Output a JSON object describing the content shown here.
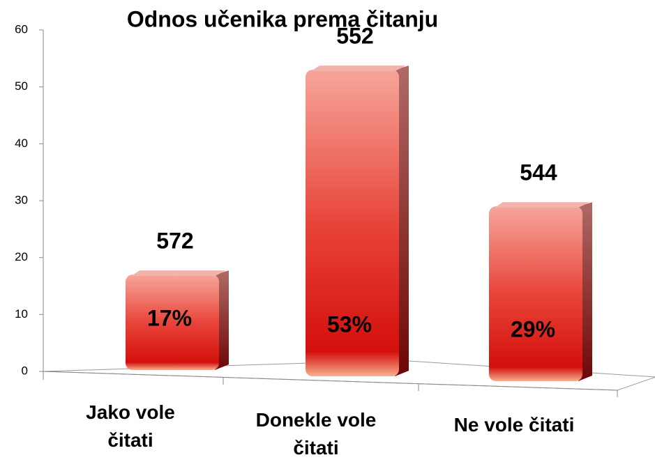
{
  "chart_data": {
    "type": "bar",
    "title": "Odnos učenika prema čitanju",
    "categories": [
      "Jako vole čitati",
      "Donekle vole čitati",
      "Ne vole čitati"
    ],
    "values": [
      17,
      53,
      29
    ],
    "value_labels": [
      "17%",
      "53%",
      "29%"
    ],
    "counts": [
      572,
      552,
      544
    ],
    "color": "#e01e1c",
    "ylim": [
      0,
      60
    ],
    "yticks": [
      0,
      10,
      20,
      30,
      40,
      50,
      60
    ],
    "grid": false
  }
}
